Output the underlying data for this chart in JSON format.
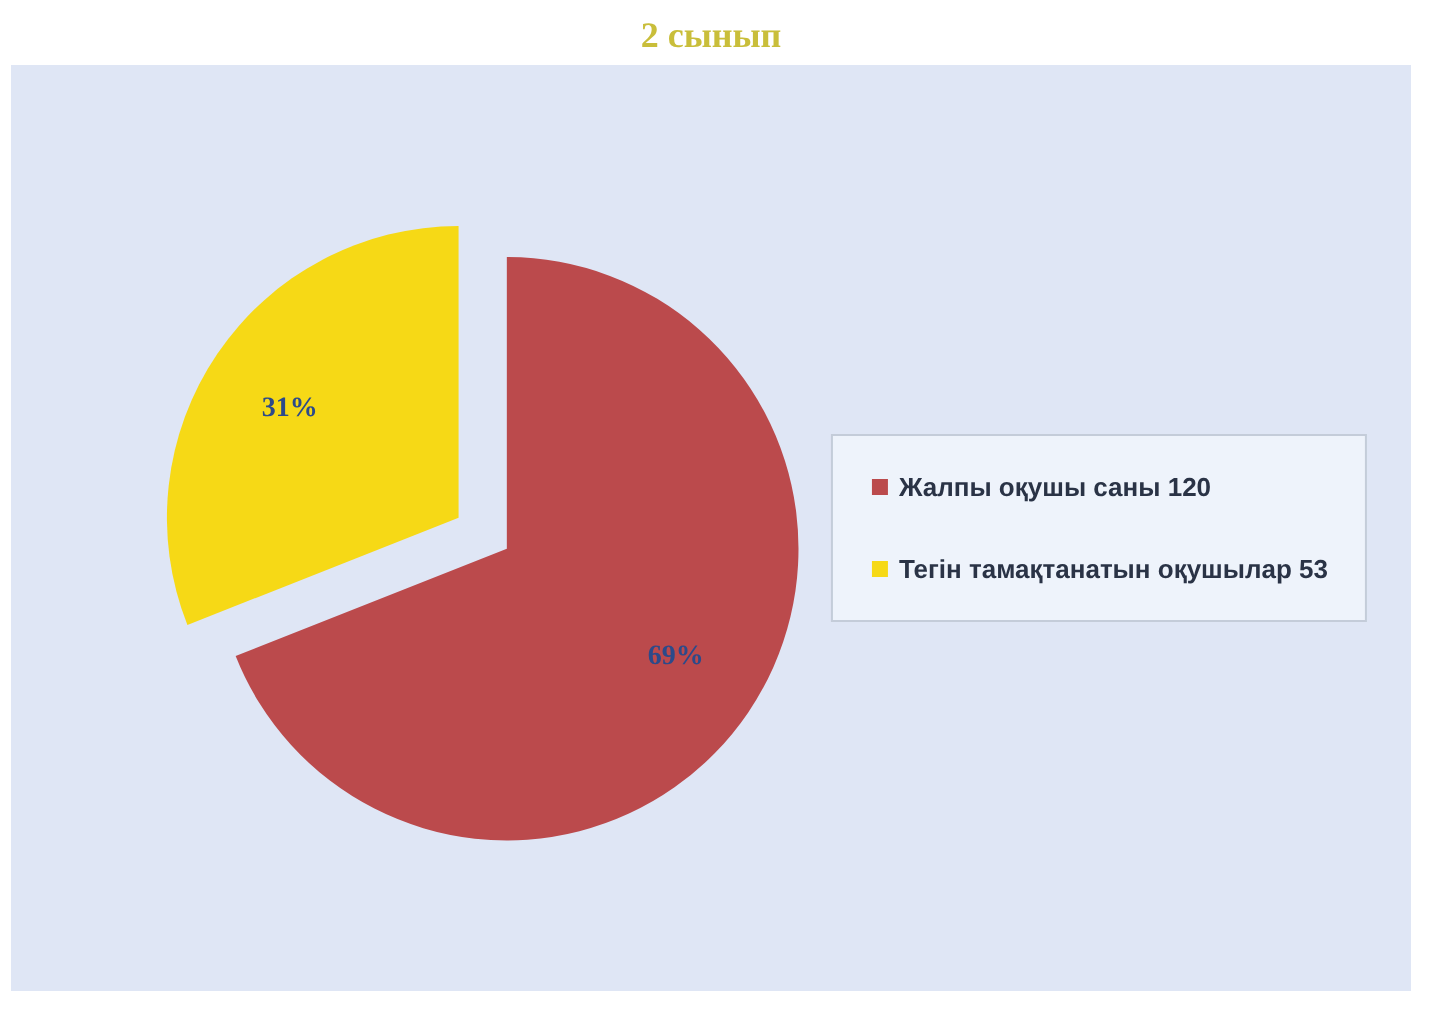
{
  "chart_data": {
    "type": "pie",
    "title": "2 сынып",
    "categories": [
      "Жалпы оқушы саны 120",
      "Тегін тамақтанатын оқушылар 53"
    ],
    "values": [
      69,
      31
    ],
    "colors": [
      "#bb4a4c",
      "#f6d916"
    ],
    "value_labels": [
      "69%",
      "31%"
    ],
    "legend": "right"
  }
}
